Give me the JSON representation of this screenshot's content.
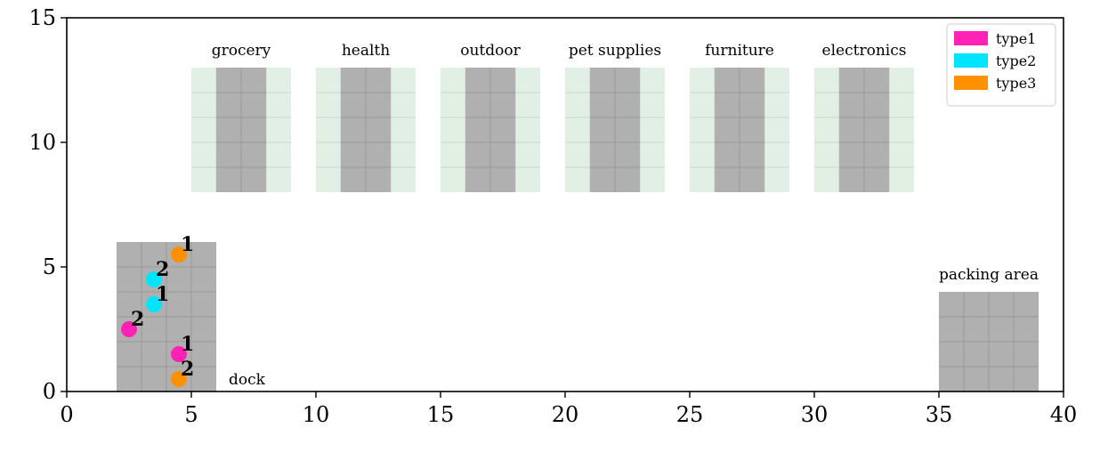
{
  "chart_data": {
    "type": "scatter",
    "title": "",
    "xlabel": "",
    "ylabel": "",
    "xlim": [
      0,
      40
    ],
    "ylim": [
      0,
      15
    ],
    "xticks": [
      0,
      5,
      10,
      15,
      20,
      25,
      30,
      35,
      40
    ],
    "yticks": [
      0,
      5,
      10,
      15
    ],
    "grid": false,
    "legend_position": "top-right",
    "colors": {
      "aisle": "#e2efe5",
      "shelf": "#b0b0b0",
      "cell_line": "#9a9a9a",
      "aisle_line": "#c8d8cc"
    },
    "shelves": [
      {
        "label": "grocery",
        "x0": 5,
        "x1": 9,
        "y0": 8,
        "y1": 13,
        "shelf_x0": 6,
        "shelf_x1": 8
      },
      {
        "label": "health",
        "x0": 10,
        "x1": 14,
        "y0": 8,
        "y1": 13,
        "shelf_x0": 11,
        "shelf_x1": 13
      },
      {
        "label": "outdoor",
        "x0": 15,
        "x1": 19,
        "y0": 8,
        "y1": 13,
        "shelf_x0": 16,
        "shelf_x1": 18
      },
      {
        "label": "pet supplies",
        "x0": 20,
        "x1": 24,
        "y0": 8,
        "y1": 13,
        "shelf_x0": 21,
        "shelf_x1": 23
      },
      {
        "label": "furniture",
        "x0": 25,
        "x1": 29,
        "y0": 8,
        "y1": 13,
        "shelf_x0": 26,
        "shelf_x1": 28
      },
      {
        "label": "electronics",
        "x0": 30,
        "x1": 34,
        "y0": 8,
        "y1": 13,
        "shelf_x0": 31,
        "shelf_x1": 33
      }
    ],
    "dock": {
      "label": "dock",
      "x0": 2,
      "x1": 6,
      "y0": 0,
      "y1": 6
    },
    "packing_area": {
      "label": "packing area",
      "x0": 35,
      "x1": 39,
      "y0": 0,
      "y1": 4
    },
    "series": [
      {
        "name": "type1",
        "color": "#ff22b4",
        "points": [
          {
            "x": 2.5,
            "y": 2.5,
            "label": "2"
          },
          {
            "x": 4.5,
            "y": 1.5,
            "label": "1"
          }
        ]
      },
      {
        "name": "type2",
        "color": "#00e5ff",
        "points": [
          {
            "x": 3.5,
            "y": 4.5,
            "label": "2"
          },
          {
            "x": 3.5,
            "y": 3.5,
            "label": "1"
          }
        ]
      },
      {
        "name": "type3",
        "color": "#ff9100",
        "points": [
          {
            "x": 4.5,
            "y": 5.5,
            "label": "1"
          },
          {
            "x": 4.5,
            "y": 0.5,
            "label": "2"
          }
        ]
      }
    ]
  }
}
